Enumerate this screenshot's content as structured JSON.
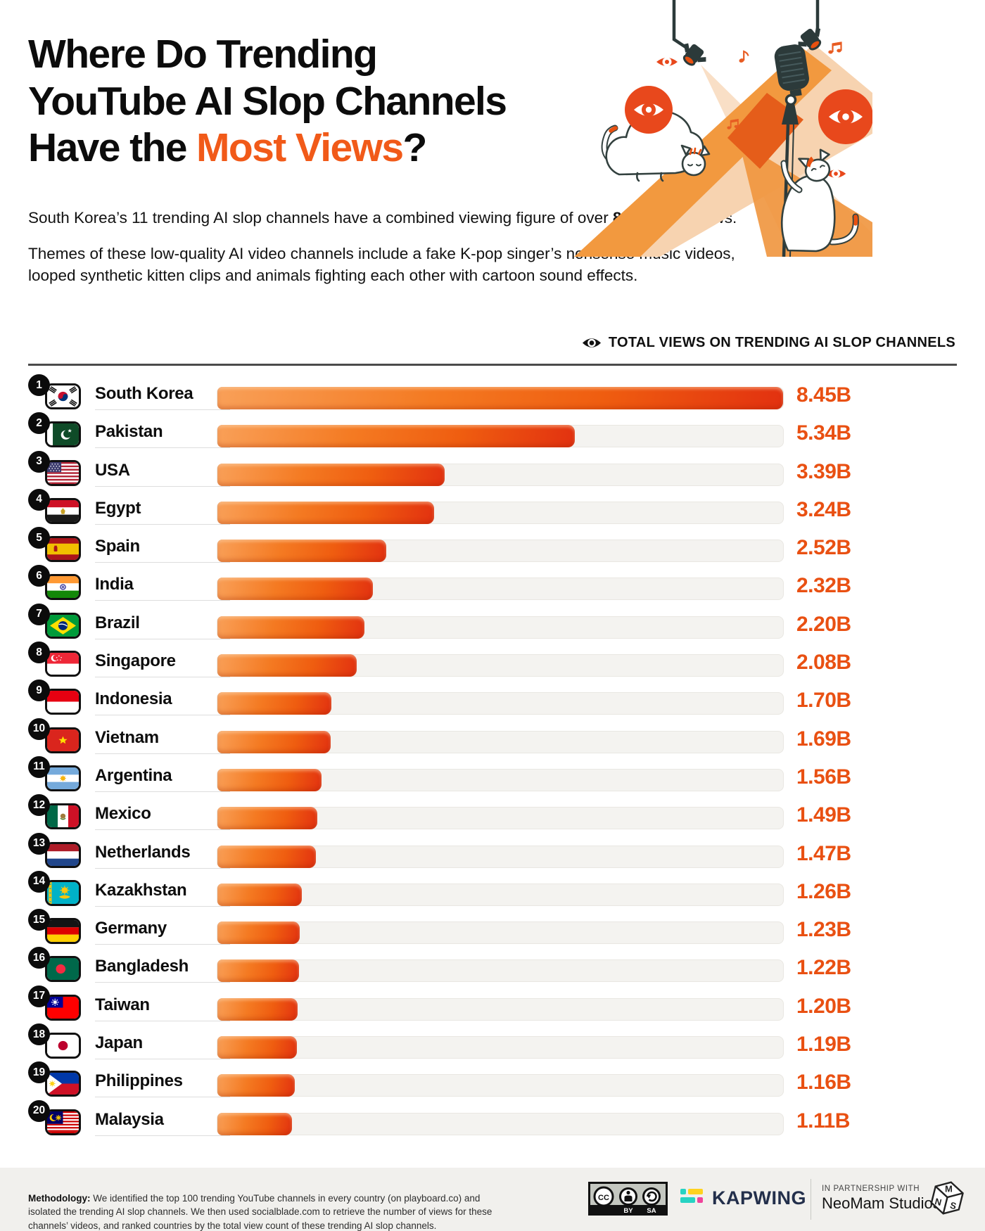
{
  "header": {
    "title_line1": "Where Do Trending",
    "title_line2": "YouTube AI Slop Channels",
    "title_line3_pre": "Have the ",
    "title_line3_highlight": "Most Views",
    "title_line3_post": "?",
    "intro1_pre": "South Korea’s 11 trending AI slop channels have a combined viewing figure of over ",
    "intro1_bold": "8.45",
    "intro1_post": " billion views.",
    "intro2": "Themes of these low-quality AI video channels include a fake K-pop singer’s nonsense music videos, looped synthetic kitten clips and animals fighting each other with cartoon sound effects."
  },
  "chart_data": {
    "type": "bar",
    "orientation": "horizontal",
    "title": "TOTAL VIEWS ON TRENDING AI SLOP CHANNELS",
    "unit": "billion views",
    "xlim": [
      0,
      8.45
    ],
    "grid": false,
    "legend": false,
    "ranks": [
      "1",
      "2",
      "3",
      "4",
      "5",
      "6",
      "7",
      "8",
      "9",
      "10",
      "11",
      "12",
      "13",
      "14",
      "15",
      "16",
      "17",
      "18",
      "19",
      "20"
    ],
    "categories": [
      "South Korea",
      "Pakistan",
      "USA",
      "Egypt",
      "Spain",
      "India",
      "Brazil",
      "Singapore",
      "Indonesia",
      "Vietnam",
      "Argentina",
      "Mexico",
      "Netherlands",
      "Kazakhstan",
      "Germany",
      "Bangladesh",
      "Taiwan",
      "Japan",
      "Philippines",
      "Malaysia"
    ],
    "values": [
      8.45,
      5.34,
      3.39,
      3.24,
      2.52,
      2.32,
      2.2,
      2.08,
      1.7,
      1.69,
      1.56,
      1.49,
      1.47,
      1.26,
      1.23,
      1.22,
      1.2,
      1.19,
      1.16,
      1.11
    ],
    "value_labels": [
      "8.45B",
      "5.34B",
      "3.39B",
      "3.24B",
      "2.52B",
      "2.32B",
      "2.20B",
      "2.08B",
      "1.70B",
      "1.69B",
      "1.56B",
      "1.49B",
      "1.47B",
      "1.26B",
      "1.23B",
      "1.22B",
      "1.20B",
      "1.19B",
      "1.16B",
      "1.11B"
    ]
  },
  "footer": {
    "methodology_label": "Methodology:",
    "methodology_text": " We identified the top 100 trending YouTube channels in every country (on playboard.co) and isolated the trending AI slop channels. We then used socialblade.com to retrieve the number of views for these channels’ videos, and ranked countries by the total view count of these trending AI slop channels.",
    "cc_label": "CC",
    "cc_by": "BY",
    "cc_sa": "SA",
    "kapwing_wordmark": "KAPWING",
    "partnership_label": "IN PARTNERSHIP WITH",
    "partner_name": "NeoMam Studios",
    "nms_n": "N",
    "nms_m": "M",
    "nms_s": "S"
  },
  "colors": {
    "accent": "#F15A19",
    "value_text": "#E95012",
    "bar_gradient": [
      "#F9A058",
      "#F47A22",
      "#EF5D10",
      "#E23110"
    ],
    "bar_track": "#F4F3F0",
    "footer_background": "#F1F0ED",
    "kapwing_navy": "#232F4B",
    "kapwing_teal": "#27D3C3",
    "kapwing_yellow": "#FFD21F",
    "kapwing_pink": "#F0439B"
  }
}
